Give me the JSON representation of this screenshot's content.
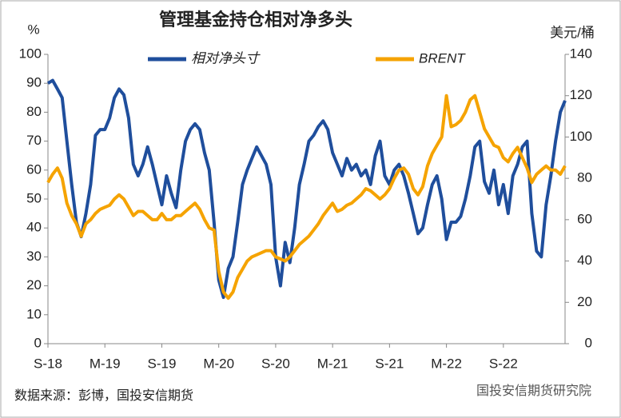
{
  "chart_data": {
    "type": "line",
    "title": "管理基金持仓相对净多头",
    "y_label": "%",
    "y2_label": "美元/桶",
    "source": "数据来源：彭博，国投安信期货",
    "watermark": "国投安信期货研究院",
    "categories": [
      "S-18",
      null,
      null,
      null,
      null,
      null,
      null,
      null,
      null,
      null,
      null,
      null,
      "M-19",
      null,
      null,
      null,
      null,
      null,
      null,
      null,
      null,
      null,
      null,
      null,
      "S-19",
      null,
      null,
      null,
      null,
      null,
      null,
      null,
      null,
      null,
      null,
      null,
      "M-20",
      null,
      null,
      null,
      null,
      null,
      null,
      null,
      null,
      null,
      null,
      null,
      "S-20",
      null,
      null,
      null,
      null,
      null,
      null,
      null,
      null,
      null,
      null,
      null,
      "M-21",
      null,
      null,
      null,
      null,
      null,
      null,
      null,
      null,
      null,
      null,
      null,
      "S-21",
      null,
      null,
      null,
      null,
      null,
      null,
      null,
      null,
      null,
      null,
      null,
      "M-22",
      null,
      null,
      null,
      null,
      null,
      null,
      null,
      null,
      null,
      null,
      null,
      "S-22",
      null,
      null,
      null,
      null,
      null,
      null,
      null,
      null,
      null,
      null,
      null,
      null,
      null
    ],
    "series": [
      {
        "name": "相对净头寸",
        "color": "#1f4e9c",
        "axis": "y",
        "values": [
          90,
          91,
          88,
          85,
          70,
          55,
          42,
          37,
          45,
          55,
          72,
          74,
          74,
          78,
          85,
          88,
          86,
          78,
          62,
          58,
          62,
          68,
          62,
          55,
          48,
          58,
          52,
          47,
          60,
          70,
          74,
          76,
          74,
          66,
          60,
          42,
          22,
          16,
          26,
          30,
          42,
          55,
          60,
          64,
          68,
          65,
          62,
          55,
          30,
          20,
          35,
          28,
          40,
          55,
          62,
          70,
          72,
          75,
          77,
          74,
          66,
          62,
          58,
          64,
          60,
          62,
          58,
          60,
          55,
          65,
          70,
          58,
          55,
          60,
          62,
          58,
          52,
          45,
          38,
          40,
          48,
          55,
          58,
          50,
          36,
          42,
          42,
          44,
          50,
          58,
          68,
          70,
          56,
          52,
          60,
          48,
          55,
          45,
          58,
          62,
          68,
          70,
          45,
          32,
          30,
          48,
          58,
          70,
          80,
          84
        ]
      },
      {
        "name": "BRENT",
        "color": "#f5a300",
        "axis": "y2",
        "values": [
          78,
          82,
          85,
          80,
          68,
          62,
          58,
          52,
          58,
          60,
          63,
          65,
          66,
          67,
          70,
          72,
          70,
          66,
          62,
          64,
          64,
          62,
          60,
          60,
          63,
          60,
          60,
          62,
          62,
          64,
          66,
          68,
          65,
          60,
          56,
          55,
          35,
          25,
          22,
          25,
          32,
          36,
          40,
          42,
          43,
          44,
          45,
          45,
          42,
          41,
          40,
          42,
          45,
          48,
          50,
          52,
          55,
          58,
          62,
          65,
          68,
          64,
          65,
          67,
          68,
          70,
          72,
          75,
          74,
          72,
          70,
          72,
          75,
          80,
          84,
          85,
          82,
          75,
          72,
          76,
          86,
          92,
          96,
          100,
          120,
          105,
          106,
          108,
          112,
          118,
          120,
          112,
          104,
          100,
          96,
          95,
          90,
          88,
          92,
          95,
          90,
          85,
          78,
          82,
          84,
          86,
          84,
          84,
          82,
          86
        ]
      }
    ],
    "ylim": [
      0,
      100
    ],
    "yticks": [
      0,
      10,
      20,
      30,
      40,
      50,
      60,
      70,
      80,
      90,
      100
    ],
    "y2lim": [
      0,
      140
    ],
    "y2ticks": [
      0,
      20,
      40,
      60,
      80,
      100,
      120,
      140
    ]
  }
}
